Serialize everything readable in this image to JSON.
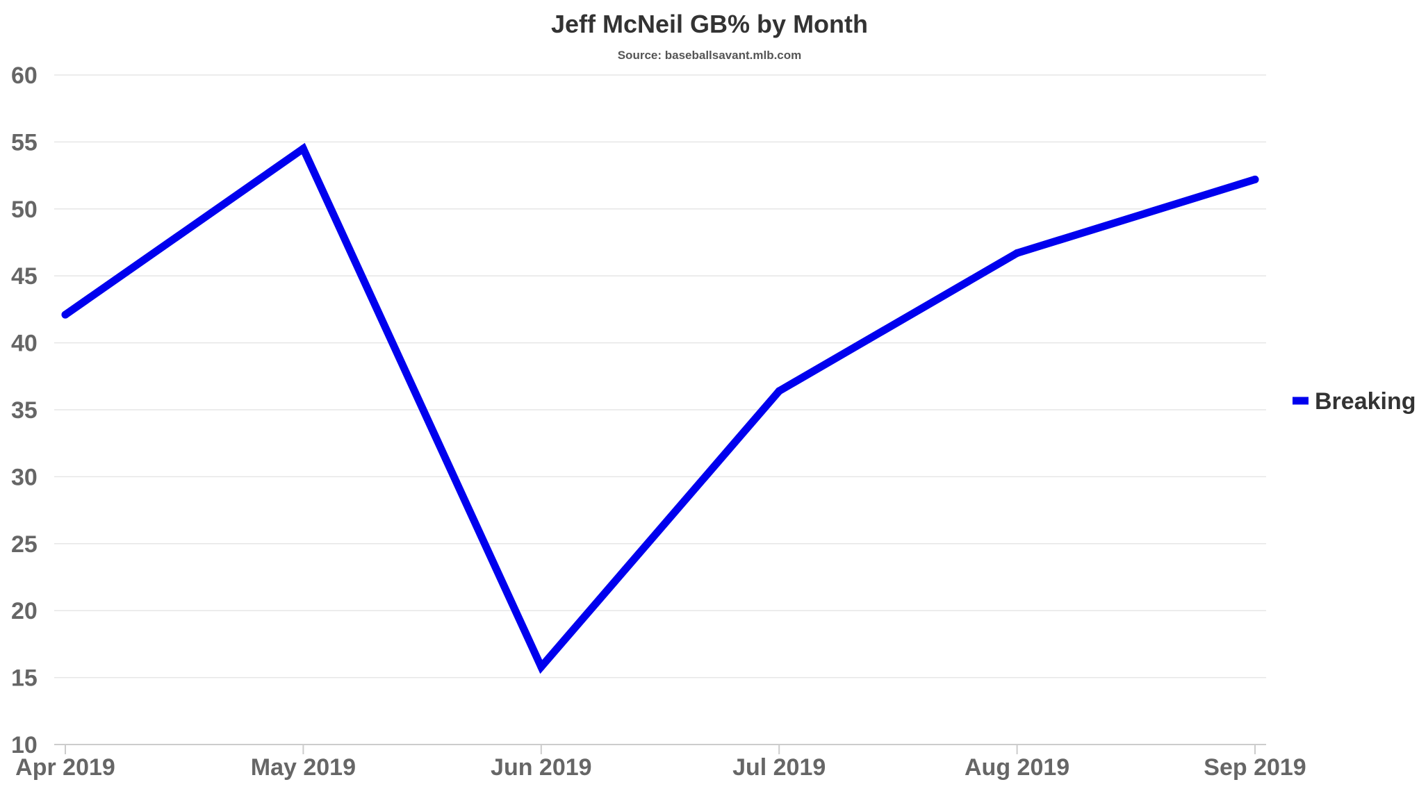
{
  "chart_data": {
    "type": "line",
    "title": "Jeff McNeil GB% by Month",
    "subtitle": "Source: baseballsavant.mlb.com",
    "xlabel": "",
    "ylabel": "",
    "categories": [
      "Apr 2019",
      "May 2019",
      "Jun 2019",
      "Jul 2019",
      "Aug 2019",
      "Sep 2019"
    ],
    "series": [
      {
        "name": "Breaking",
        "color": "#0000ee",
        "values": [
          42.1,
          54.5,
          15.8,
          36.4,
          46.7,
          52.2
        ]
      }
    ],
    "ylim": [
      10,
      60
    ],
    "yticks": [
      10,
      15,
      20,
      25,
      30,
      35,
      40,
      45,
      50,
      55,
      60
    ],
    "grid": true,
    "legend_position": "right"
  }
}
